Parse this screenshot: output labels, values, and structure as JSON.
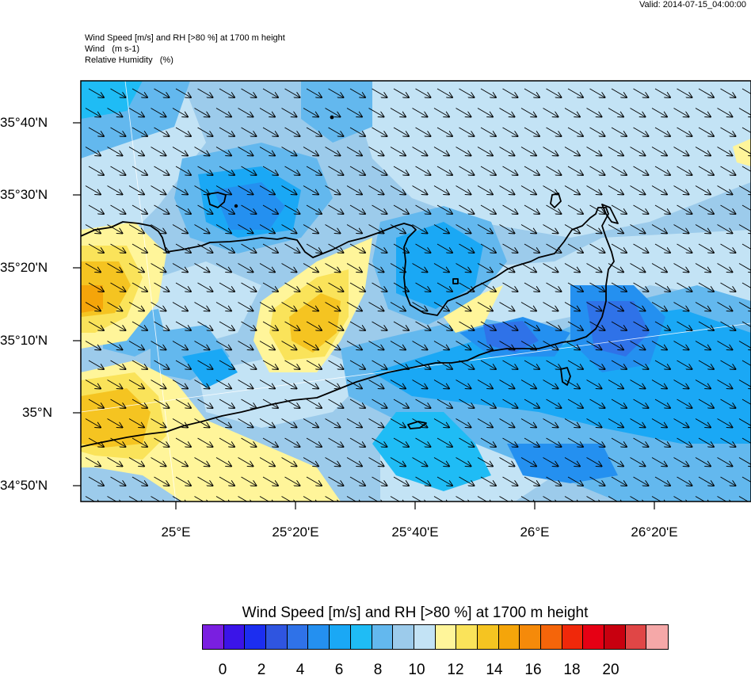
{
  "valid_time": "Valid: 2014-07-15_04:00:00",
  "titles": {
    "line1": "Wind Speed [m/s] and RH [>80 %] at 1700 m height",
    "line2": "Wind   (m s-1)",
    "line3": "Relative Humidity   (%)"
  },
  "axes": {
    "lat_labels": [
      "35°40'N",
      "35°30'N",
      "35°20'N",
      "35°10'N",
      "35°N",
      "34°50'N"
    ],
    "lon_labels": [
      "25°E",
      "25°20'E",
      "25°40'E",
      "26°E",
      "26°20'E"
    ]
  },
  "colorbar": {
    "title": "Wind Speed [m/s] and RH [>80 %] at 1700 m height",
    "colors": [
      "#7a1fe0",
      "#3b14e8",
      "#1c2ef0",
      "#2f55e0",
      "#2f72e8",
      "#2490f0",
      "#1aa8f5",
      "#1fbcf5",
      "#63b8ee",
      "#9ccbeb",
      "#c3e3f5",
      "#fff59a",
      "#fae35a",
      "#f5c421",
      "#f5a50a",
      "#f58a0a",
      "#f5650a",
      "#f0280a",
      "#e60014",
      "#c8000f",
      "#e04646",
      "#f5a8a8"
    ],
    "tick_labels": [
      "0",
      "2",
      "4",
      "6",
      "8",
      "10",
      "12",
      "14",
      "16",
      "18",
      "20"
    ]
  },
  "legend_title": "Wind Speed [m/s] and RH [>80 %] at 1700 m height"
}
